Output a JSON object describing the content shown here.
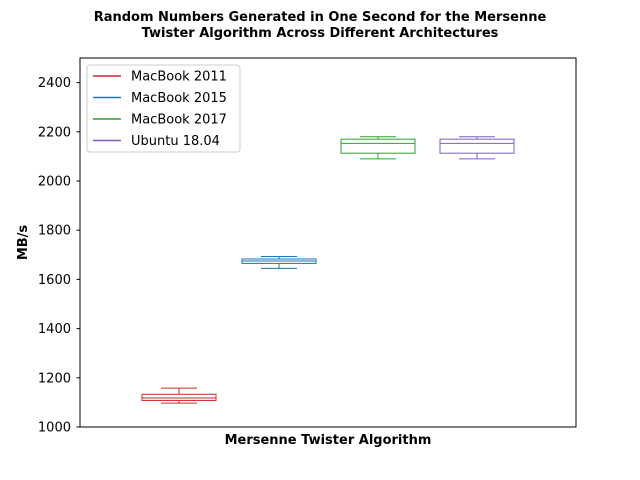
{
  "chart_data": {
    "type": "box",
    "title_line1": "Random Numbers Generated in One Second for the Mersenne",
    "title_line2": "Twister Algorithm Across Different Architectures",
    "xlabel": "Mersenne Twister Algorithm",
    "ylabel": "MB/s",
    "ylim": [
      1000,
      2500
    ],
    "yticks": [
      1000,
      1200,
      1400,
      1600,
      1800,
      2000,
      2200,
      2400
    ],
    "grid": false,
    "legend_position": "top-left",
    "series": [
      {
        "name": "MacBook 2011",
        "color": "#d62728",
        "whisker_low": 1097,
        "q1": 1108,
        "median": 1118,
        "q3": 1133,
        "whisker_high": 1158
      },
      {
        "name": "MacBook 2015",
        "color": "#1f77b4",
        "whisker_low": 1645,
        "q1": 1665,
        "median": 1675,
        "q3": 1683,
        "whisker_high": 1693
      },
      {
        "name": "MacBook 2017",
        "color": "#2ca02c",
        "whisker_low": 2090,
        "q1": 2113,
        "median": 2153,
        "q3": 2170,
        "whisker_high": 2180
      },
      {
        "name": "Ubuntu 18.04",
        "color": "#7e5fbf",
        "whisker_low": 2090,
        "q1": 2113,
        "median": 2153,
        "q3": 2170,
        "whisker_high": 2180
      }
    ]
  }
}
